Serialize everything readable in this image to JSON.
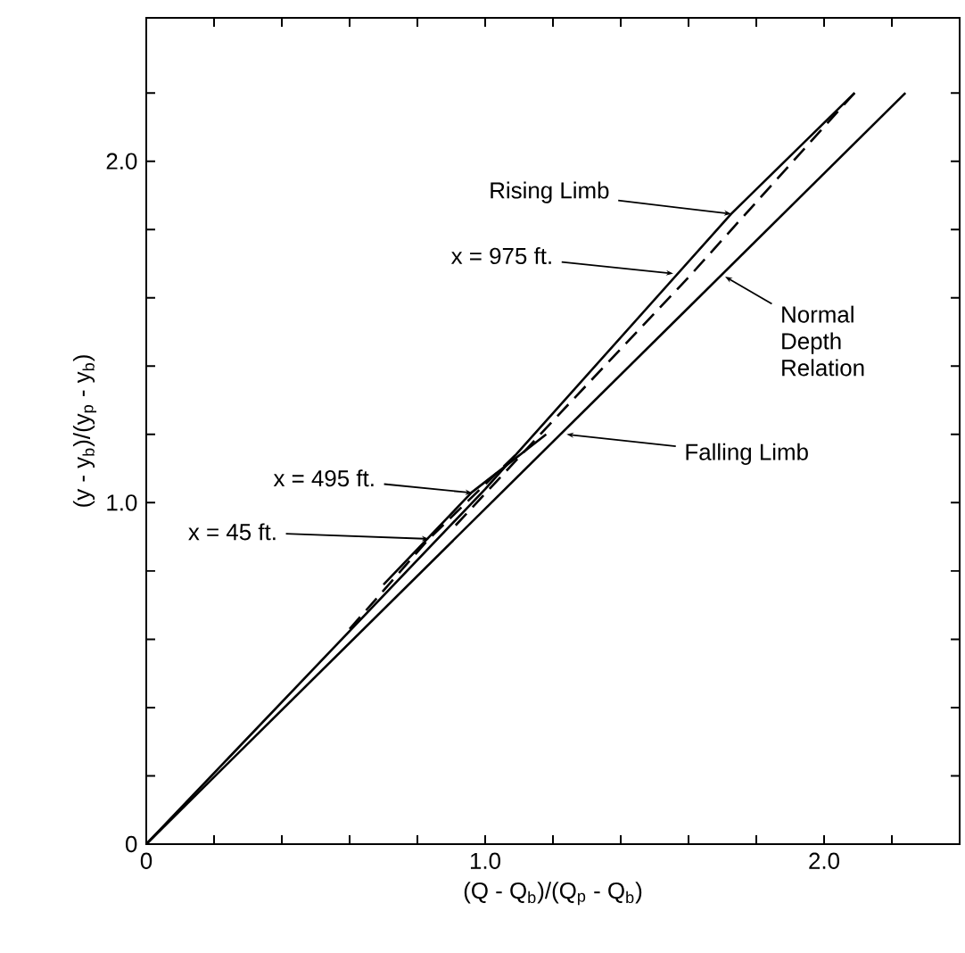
{
  "chart_data": {
    "type": "line",
    "xlabel": "(Q - Q$_{b}$)/(Q$_{p}$ - Q$_{b}$)",
    "ylabel": "(y - y$_{b}$)/(y$_{p}$ - y$_{b}$)",
    "xlim": [
      0,
      2.4
    ],
    "ylim": [
      0,
      2.42
    ],
    "xticks": [
      0,
      {
        "value": 0.2,
        "label": null
      },
      {
        "value": 0.4,
        "label": null
      },
      {
        "value": 0.6,
        "label": null
      },
      {
        "value": 0.8,
        "label": null
      },
      {
        "value": 1,
        "label": "1.0"
      },
      {
        "value": 1.2,
        "label": null
      },
      {
        "value": 1.4,
        "label": null
      },
      {
        "value": 1.6,
        "label": null
      },
      {
        "value": 1.8,
        "label": null
      },
      {
        "value": 2,
        "label": "2.0"
      },
      {
        "value": 2.2,
        "label": null
      }
    ],
    "yticks": [
      0,
      {
        "value": 0.2,
        "label": null
      },
      {
        "value": 0.4,
        "label": null
      },
      {
        "value": 0.6,
        "label": null
      },
      {
        "value": 0.8,
        "label": null
      },
      {
        "value": 1,
        "label": "1.0"
      },
      {
        "value": 1.2,
        "label": null
      },
      {
        "value": 1.4,
        "label": null
      },
      {
        "value": 1.6,
        "label": null
      },
      {
        "value": 1.8,
        "label": null
      },
      {
        "value": 2,
        "label": "2.0"
      },
      {
        "value": 2.2,
        "label": null
      }
    ],
    "grid": false,
    "marker": "none",
    "series": [
      {
        "color": "#000000",
        "line_style": "solid",
        "x": [
          0,
          2.24
        ],
        "values": [
          0,
          2.2
        ]
      },
      {
        "color": "#000000",
        "line_style": "solid",
        "x": [
          0,
          1.0,
          1.726,
          2.09
        ],
        "values": [
          0,
          1.04,
          1.846,
          2.2
        ]
      },
      {
        "color": "#000000",
        "line_style": "dashed",
        "x": [
          2.09,
          1.6,
          1.2,
          0.9
        ],
        "values": [
          2.2,
          1.66,
          1.24,
          0.92
        ]
      },
      {
        "color": "#000000",
        "line_style": "solid",
        "x": [
          0.7,
          0.96,
          1.18
        ],
        "values": [
          0.76,
          1.03,
          1.2
        ]
      },
      {
        "color": "#000000",
        "line_style": "dashed",
        "x": [
          0.6,
          0.834,
          1.1
        ],
        "values": [
          0.63,
          0.894,
          1.15
        ]
      }
    ],
    "annotations": [
      {
        "text": "Rising Limb",
        "x": 1.726,
        "y": 1.846
      },
      {
        "text": "x = 975 ft.",
        "x": 1.555,
        "y": 1.671
      },
      {
        "text": "Normal Depth Relation",
        "x": 1.708,
        "y": 1.662
      },
      {
        "text": "Falling Limb",
        "x": 1.24,
        "y": 1.2
      },
      "x = 495 ft.",
      {
        "text": "x = 45 ft.",
        "x": 0.834,
        "y": 0.894
      }
    ]
  }
}
